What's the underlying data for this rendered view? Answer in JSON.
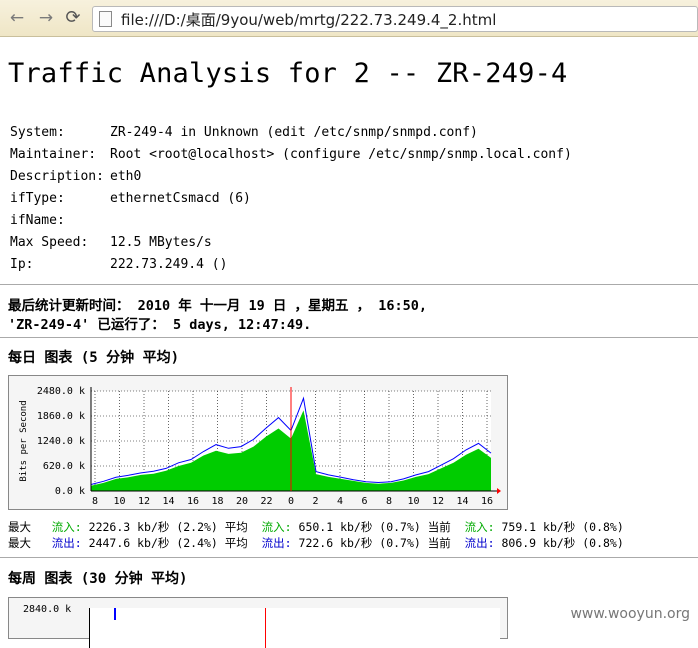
{
  "browser": {
    "url": "file:///D:/桌面/9you/web/mrtg/222.73.249.4_2.html",
    "back_icon": "arrow-left",
    "forward_icon": "arrow-right",
    "reload_icon": "reload"
  },
  "page": {
    "title": "Traffic Analysis for 2 -- ZR-249-4",
    "info": [
      {
        "key": "System:",
        "value": "ZR-249-4 in Unknown (edit /etc/snmp/snmpd.conf)"
      },
      {
        "key": "Maintainer:",
        "value": "Root <root@localhost> (configure /etc/snmp/snmp.local.conf)"
      },
      {
        "key": "Description:",
        "value": "eth0"
      },
      {
        "key": "ifType:",
        "value": "ethernetCsmacd (6)"
      },
      {
        "key": "ifName:",
        "value": ""
      },
      {
        "key": "Max Speed:",
        "value": "12.5 MBytes/s"
      },
      {
        "key": "Ip:",
        "value": "222.73.249.4 ()"
      }
    ],
    "last_update": "最后统计更新时间： 2010 年 十一月 19 日 ，星期五 ， 16:50,",
    "uptime": "'ZR-249-4' 已运行了： 5 days, 12:47:49.",
    "daily_title": "每日 图表 (5 分钟 平均)",
    "weekly_title": "每周 图表 (30 分钟 平均)",
    "legend_in": {
      "max_label": "最大",
      "in_label": "流入:",
      "max_value": "2226.3 kb/秒 (2.2%)",
      "avg_label": "平均",
      "avg_value": "650.1 kb/秒 (0.7%)",
      "cur_label": "当前",
      "cur_value": "759.1 kb/秒 (0.8%)"
    },
    "legend_out": {
      "max_label": "最大",
      "out_label": "流出:",
      "max_value": "2447.6 kb/秒 (2.4%)",
      "avg_label": "平均",
      "avg_value": "722.6 kb/秒 (0.7%)",
      "cur_label": "当前",
      "cur_value": "806.9 kb/秒 (0.8%)"
    },
    "weekly_first_tick": "2840.0 k",
    "watermark": "www.wooyun.org"
  },
  "chart_data": {
    "type": "area",
    "ylabel": "Bits per Second",
    "y_ticks": [
      "0.0 k",
      "620.0 k",
      "1240.0 k",
      "1860.0 k",
      "2480.0 k"
    ],
    "x_ticks": [
      "8",
      "10",
      "12",
      "14",
      "16",
      "18",
      "20",
      "22",
      "0",
      "2",
      "4",
      "6",
      "8",
      "10",
      "12",
      "14",
      "16"
    ],
    "ylim": [
      0,
      2480
    ],
    "colors": {
      "in": "#00cc00",
      "out": "#0000ff",
      "now_marker": "#ff0000"
    },
    "series": [
      {
        "name": "流入",
        "values": [
          130,
          200,
          300,
          340,
          400,
          430,
          500,
          620,
          700,
          880,
          1000,
          920,
          950,
          1100,
          1350,
          1550,
          1300,
          2000,
          420,
          350,
          300,
          250,
          200,
          180,
          200,
          260,
          350,
          420,
          560,
          700,
          900,
          1050,
          820
        ]
      },
      {
        "name": "流出",
        "values": [
          160,
          240,
          340,
          390,
          450,
          490,
          560,
          700,
          780,
          980,
          1150,
          1060,
          1100,
          1280,
          1560,
          1820,
          1500,
          2300,
          480,
          400,
          340,
          280,
          230,
          210,
          230,
          300,
          400,
          480,
          640,
          800,
          1020,
          1180,
          940
        ]
      }
    ]
  }
}
